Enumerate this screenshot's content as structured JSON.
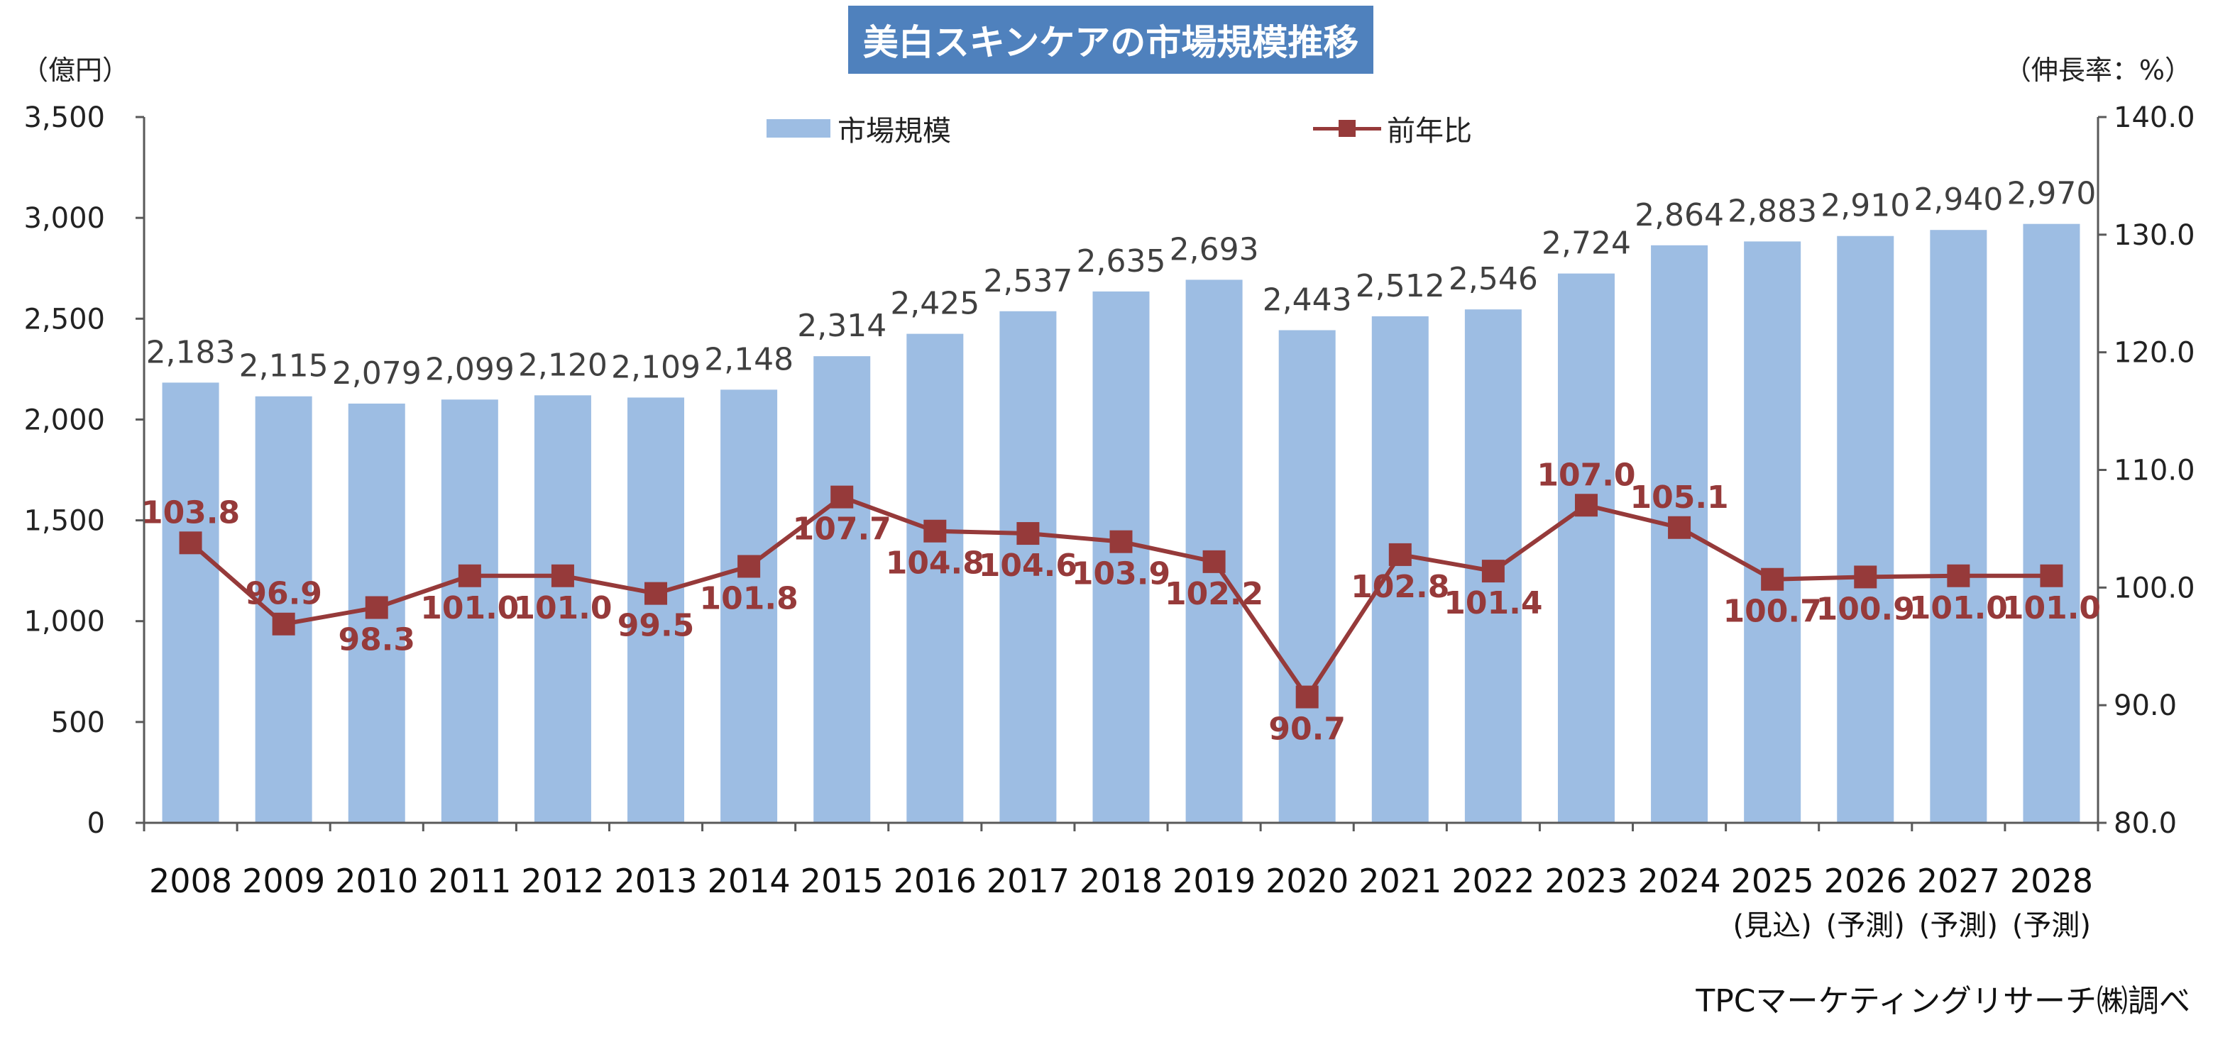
{
  "chart_data": {
    "type": "bar+line",
    "title": "美白スキンケアの市場規模推移",
    "left_axis_label": "（億円）",
    "right_axis_label": "（伸長率：%）",
    "categories": [
      "2008",
      "2009",
      "2010",
      "2011",
      "2012",
      "2013",
      "2014",
      "2015",
      "2016",
      "2017",
      "2018",
      "2019",
      "2020",
      "2021",
      "2022",
      "2023",
      "2024",
      "2025",
      "2026",
      "2027",
      "2028"
    ],
    "category_notes": [
      "",
      "",
      "",
      "",
      "",
      "",
      "",
      "",
      "",
      "",
      "",
      "",
      "",
      "",
      "",
      "",
      "",
      "(見込)",
      "(予測)",
      "(予測)",
      "(予測)"
    ],
    "bar_series": {
      "name": "市場規模",
      "values": [
        2183,
        2115,
        2079,
        2099,
        2120,
        2109,
        2148,
        2314,
        2425,
        2537,
        2635,
        2693,
        2443,
        2512,
        2546,
        2724,
        2864,
        2883,
        2910,
        2940,
        2970
      ],
      "labels": [
        "2,183",
        "2,115",
        "2,079",
        "2,099",
        "2,120",
        "2,109",
        "2,148",
        "2,314",
        "2,425",
        "2,537",
        "2,635",
        "2,693",
        "2,443",
        "2,512",
        "2,546",
        "2,724",
        "2,864",
        "2,883",
        "2,910",
        "2,940",
        "2,970"
      ]
    },
    "line_series": {
      "name": "前年比",
      "values": [
        103.8,
        96.9,
        98.3,
        101.0,
        101.0,
        99.5,
        101.8,
        107.7,
        104.8,
        104.6,
        103.9,
        102.2,
        90.7,
        102.8,
        101.4,
        107.0,
        105.1,
        100.7,
        100.9,
        101.0,
        101.0
      ],
      "labels": [
        "103.8",
        "96.9",
        "98.3",
        "101.0",
        "101.0",
        "99.5",
        "101.8",
        "107.7",
        "104.8",
        "104.6",
        "103.9",
        "102.2",
        "90.7",
        "102.8",
        "101.4",
        "107.0",
        "105.1",
        "100.7",
        "100.9",
        "101.0",
        "101.0"
      ],
      "label_positions": [
        "above",
        "above",
        "below",
        "below",
        "below",
        "below",
        "below",
        "below",
        "below",
        "below",
        "below",
        "below",
        "below",
        "below",
        "below",
        "above",
        "above",
        "below",
        "below",
        "below",
        "below"
      ]
    },
    "y_left": {
      "min": 0,
      "max": 3500,
      "ticks": [
        0,
        500,
        1000,
        1500,
        2000,
        2500,
        3000,
        3500
      ],
      "tick_labels": [
        "0",
        "500",
        "1,000",
        "1,500",
        "2,000",
        "2,500",
        "3,000",
        "3,500"
      ]
    },
    "y_right": {
      "min": 80,
      "max": 140,
      "ticks": [
        80,
        90,
        100,
        110,
        120,
        130,
        140
      ],
      "tick_labels": [
        "80.0",
        "90.0",
        "100.0",
        "110.0",
        "120.0",
        "130.0",
        "140.0"
      ]
    },
    "grid": false,
    "legend": "top-center",
    "colors": {
      "bar": "#9dbde3",
      "line": "#963a3a",
      "title_bg": "#4f81bd",
      "axis": "#595959"
    }
  },
  "source": "TPCマーケティングリサーチ㈱調べ"
}
